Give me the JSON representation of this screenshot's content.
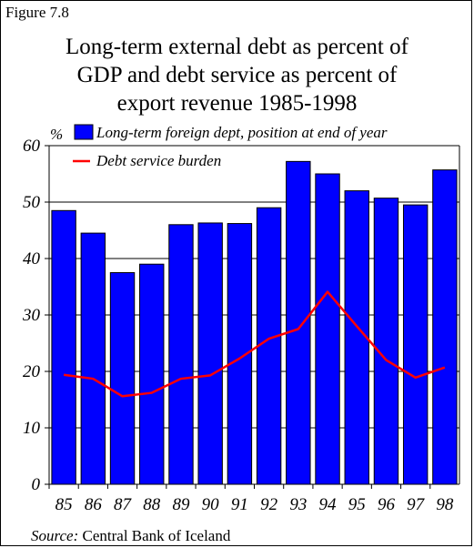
{
  "figure_label": "Figure 7.8",
  "title_lines": [
    "Long-term external debt as percent of",
    "GDP and debt service as percent of",
    "export revenue 1985-1998"
  ],
  "source": {
    "label": "Source:",
    "text": "Central Bank of Iceland"
  },
  "colors": {
    "bars": "#0000ff",
    "bar_edge": "#000000",
    "line": "#ff0000",
    "grid": "#000000"
  },
  "chart_data": {
    "type": "bar",
    "title": "Long-term external debt as percent of GDP and debt service as percent of export revenue 1985-1998",
    "ylabel": "%",
    "ylim": [
      0,
      60
    ],
    "yticks": [
      0,
      10,
      20,
      30,
      40,
      50,
      60
    ],
    "grid": "horizontal",
    "legend_position": "top",
    "categories": [
      "85",
      "86",
      "87",
      "88",
      "89",
      "90",
      "91",
      "92",
      "93",
      "94",
      "95",
      "96",
      "97",
      "98"
    ],
    "series": [
      {
        "name": "Long-term foreign dept, position at end of year",
        "type": "bar",
        "values": [
          48.5,
          44.5,
          37.5,
          39,
          46,
          46.3,
          46.2,
          49,
          57.2,
          55,
          52,
          50.7,
          49.5,
          55.7
        ]
      },
      {
        "name": "Debt service burden",
        "type": "line",
        "values": [
          19.4,
          18.7,
          15.6,
          16.2,
          18.7,
          19.3,
          22.3,
          25.8,
          27.5,
          34.1,
          28,
          22,
          18.9,
          20.7
        ]
      }
    ]
  }
}
